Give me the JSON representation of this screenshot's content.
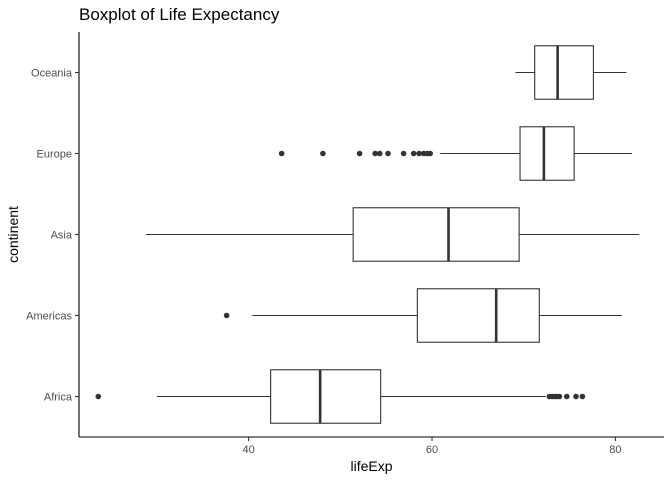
{
  "chart_data": {
    "type": "boxplot",
    "title": "Boxplot of Life Expectancy",
    "xlabel": "lifeExp",
    "ylabel": "continent",
    "xlim": [
      21.5,
      85.3
    ],
    "xticks": [
      40,
      60,
      80
    ],
    "grid": false,
    "legend": "none",
    "colors": {
      "box_fill": "#ffffff",
      "line": "#333333",
      "axis": "#000000",
      "tick_label": "#4d4d4d"
    },
    "series": [
      {
        "category": "Oceania",
        "whisker_low": 69.1,
        "q1": 71.2,
        "median": 73.7,
        "q3": 77.6,
        "whisker_high": 81.2,
        "outliers": []
      },
      {
        "category": "Europe",
        "whisker_low": 60.9,
        "q1": 69.6,
        "median": 72.2,
        "q3": 75.5,
        "whisker_high": 81.8,
        "outliers": [
          43.6,
          48.1,
          52.1,
          53.8,
          54.3,
          55.2,
          56.9,
          58.0,
          58.6,
          59.1,
          59.5,
          59.8
        ]
      },
      {
        "category": "Asia",
        "whisker_low": 28.8,
        "q1": 51.4,
        "median": 61.8,
        "q3": 69.5,
        "whisker_high": 82.6,
        "outliers": []
      },
      {
        "category": "Americas",
        "whisker_low": 40.4,
        "q1": 58.4,
        "median": 67.0,
        "q3": 71.7,
        "whisker_high": 80.7,
        "outliers": [
          37.6
        ]
      },
      {
        "category": "Africa",
        "whisker_low": 30.0,
        "q1": 42.4,
        "median": 47.8,
        "q3": 54.4,
        "whisker_high": 72.4,
        "outliers": [
          23.6,
          72.8,
          73.1,
          73.4,
          73.6,
          73.9,
          74.7,
          75.7,
          76.4
        ]
      }
    ]
  }
}
